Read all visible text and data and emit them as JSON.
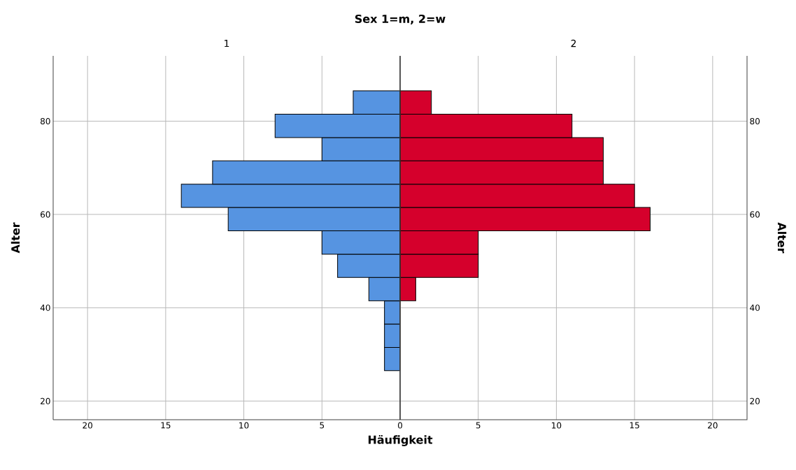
{
  "chart_data": [
    {
      "type": "histogram",
      "orientation": "horizontal",
      "title": "Sex 1=m, 2=w",
      "subtitle": "1",
      "xlabel": "Häufigkeit",
      "ylabel": "Alter",
      "bins": [
        26.5,
        31.5,
        36.5,
        41.5,
        46.5,
        51.5,
        56.5,
        61.5,
        66.5,
        71.5,
        76.5,
        81.5,
        86.5
      ],
      "values": [
        1,
        1,
        1,
        2,
        4,
        5,
        11,
        14,
        12,
        5,
        8,
        3
      ],
      "color": "#5694e1",
      "xlim": [
        22.2,
        0
      ],
      "xticks": [
        5,
        10,
        15,
        20
      ],
      "ylim": [
        16,
        94
      ],
      "yticks": [
        20,
        40,
        60,
        80
      ],
      "grid": true
    },
    {
      "type": "histogram",
      "orientation": "horizontal",
      "subtitle": "2",
      "y2label": "Alter",
      "bins": [
        26.5,
        31.5,
        36.5,
        41.5,
        46.5,
        51.5,
        56.5,
        61.5,
        66.5,
        71.5,
        76.5,
        81.5,
        86.5
      ],
      "values": [
        0,
        0,
        0,
        1,
        5,
        5,
        16,
        15,
        13,
        13,
        11,
        2
      ],
      "color": "#d5002c",
      "xlim": [
        0,
        22.2
      ],
      "xticks": [
        0,
        5,
        10,
        15,
        20
      ],
      "ylim": [
        16,
        94
      ],
      "yticks": [
        20,
        40,
        60,
        80
      ],
      "grid": true
    }
  ]
}
